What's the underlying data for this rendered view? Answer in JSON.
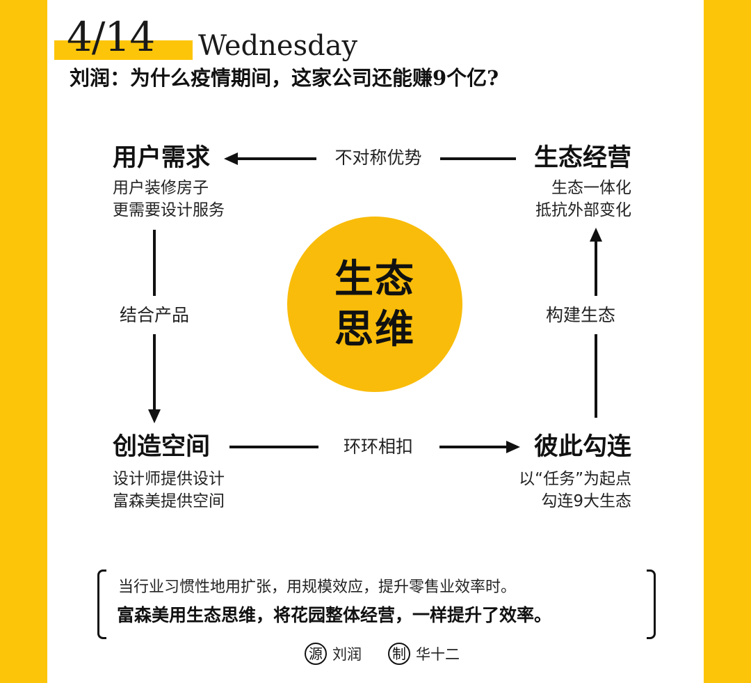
{
  "header": {
    "date": "4/14",
    "weekday": "Wednesday",
    "headline": "刘润：为什么疫情期间，这家公司还能赚9个亿?"
  },
  "diagram": {
    "center": {
      "line1": "生态",
      "line2": "思维"
    },
    "nodes": {
      "user_demand": {
        "title": "用户需求",
        "desc1": "用户装修房子",
        "desc2": "更需要设计服务"
      },
      "eco_operation": {
        "title": "生态经营",
        "desc1": "生态一体化",
        "desc2": "抵抗外部变化"
      },
      "create_space": {
        "title": "创造空间",
        "desc1": "设计师提供设计",
        "desc2": "富森美提供空间"
      },
      "interlink": {
        "title": "彼此勾连",
        "desc1": "以“任务”为起点",
        "desc2": "勾连9大生态"
      }
    },
    "edges": {
      "top": "不对称优势",
      "left": "结合产品",
      "bottom": "环环相扣",
      "right": "构建生态"
    }
  },
  "quote": {
    "line1": "当行业习惯性地用扩张，用规模效应，提升零售业效率时。",
    "line2": "富森美用生态思维，将花园整体经营，一样提升了效率。"
  },
  "credits": {
    "source_badge": "源",
    "source_name": "刘润",
    "maker_badge": "制",
    "maker_name": "华十二"
  },
  "colors": {
    "accent": "#FDC50A",
    "circle": "#F9BC0A",
    "text": "#111111"
  }
}
